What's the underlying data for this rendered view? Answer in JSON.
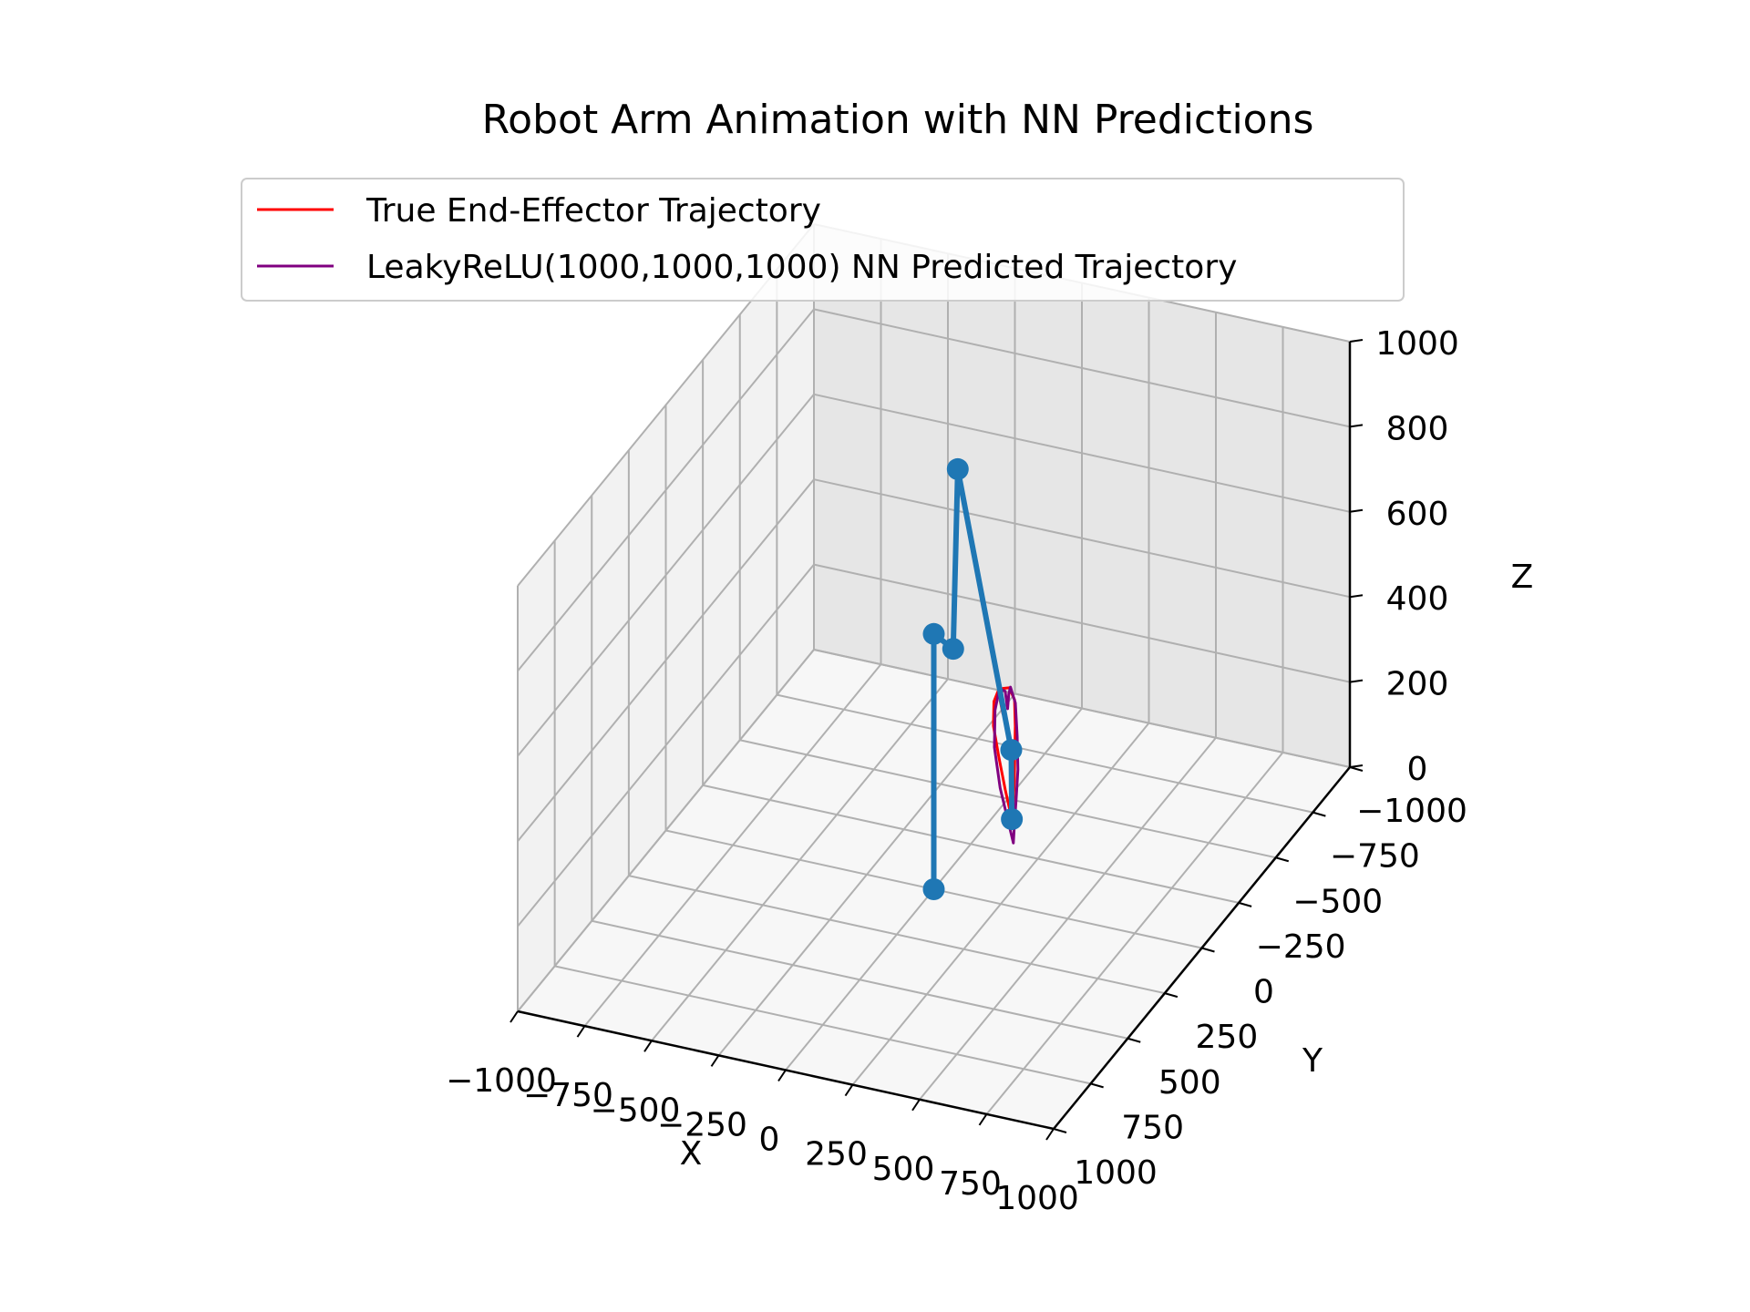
{
  "chart_data": {
    "type": "line",
    "projection": "3d",
    "title": "Robot Arm Animation with NN Predictions",
    "xlabel": "X",
    "ylabel": "Y",
    "zlabel": "Z",
    "xlim": [
      -1000,
      1000
    ],
    "ylim": [
      -1000,
      1000
    ],
    "zlim": [
      0,
      1000
    ],
    "xticks": [
      "−1000",
      "−750",
      "−500",
      "−250",
      "0",
      "250",
      "500",
      "750",
      "1000"
    ],
    "yticks": [
      "−1000",
      "−750",
      "−500",
      "−250",
      "0",
      "250",
      "500",
      "750",
      "1000"
    ],
    "zticks": [
      "0",
      "200",
      "400",
      "600",
      "800",
      "1000"
    ],
    "grid": true,
    "legend_position": "top",
    "colors": {
      "true": "#ff0000",
      "predicted": "#800080",
      "arm": "#1f77b4",
      "pane_left": "#f2f2f2",
      "pane_right": "#e6e6e6",
      "pane_floor": "#f7f7f7",
      "grid": "#b0b0b0"
    },
    "series": [
      {
        "name": "True End-Effector Trajectory",
        "color": "#ff0000",
        "points": [
          [
            330,
            70,
            240
          ],
          [
            300,
            60,
            300
          ],
          [
            270,
            50,
            370
          ],
          [
            250,
            50,
            440
          ],
          [
            255,
            55,
            500
          ],
          [
            275,
            65,
            530
          ],
          [
            295,
            75,
            520
          ],
          [
            305,
            85,
            490
          ],
          [
            300,
            95,
            525
          ],
          [
            315,
            105,
            560
          ],
          [
            345,
            115,
            570
          ],
          [
            365,
            115,
            545
          ],
          [
            365,
            110,
            480
          ],
          [
            355,
            95,
            410
          ],
          [
            345,
            80,
            340
          ],
          [
            335,
            70,
            270
          ],
          [
            330,
            70,
            240
          ]
        ]
      },
      {
        "name": "LeakyReLU(1000,1000,1000) NN Predicted Trajectory",
        "color": "#800080",
        "points": [
          [
            380,
            150,
            225
          ],
          [
            300,
            95,
            320
          ],
          [
            265,
            70,
            400
          ],
          [
            270,
            75,
            490
          ],
          [
            295,
            90,
            550
          ],
          [
            330,
            115,
            560
          ],
          [
            350,
            135,
            530
          ],
          [
            360,
            145,
            570
          ],
          [
            380,
            170,
            600
          ],
          [
            415,
            200,
            580
          ],
          [
            430,
            215,
            510
          ],
          [
            430,
            210,
            430
          ],
          [
            415,
            195,
            350
          ],
          [
            395,
            170,
            280
          ],
          [
            380,
            150,
            225
          ]
        ]
      },
      {
        "name": "Robot Arm",
        "color": "#1f77b4",
        "markers": true,
        "points": [
          [
            0,
            0,
            0
          ],
          [
            0,
            0,
            600
          ],
          [
            100,
            50,
            600
          ],
          [
            200,
            200,
            1100
          ],
          [
            325,
            65,
            400
          ],
          [
            330,
            70,
            240
          ]
        ]
      }
    ]
  }
}
